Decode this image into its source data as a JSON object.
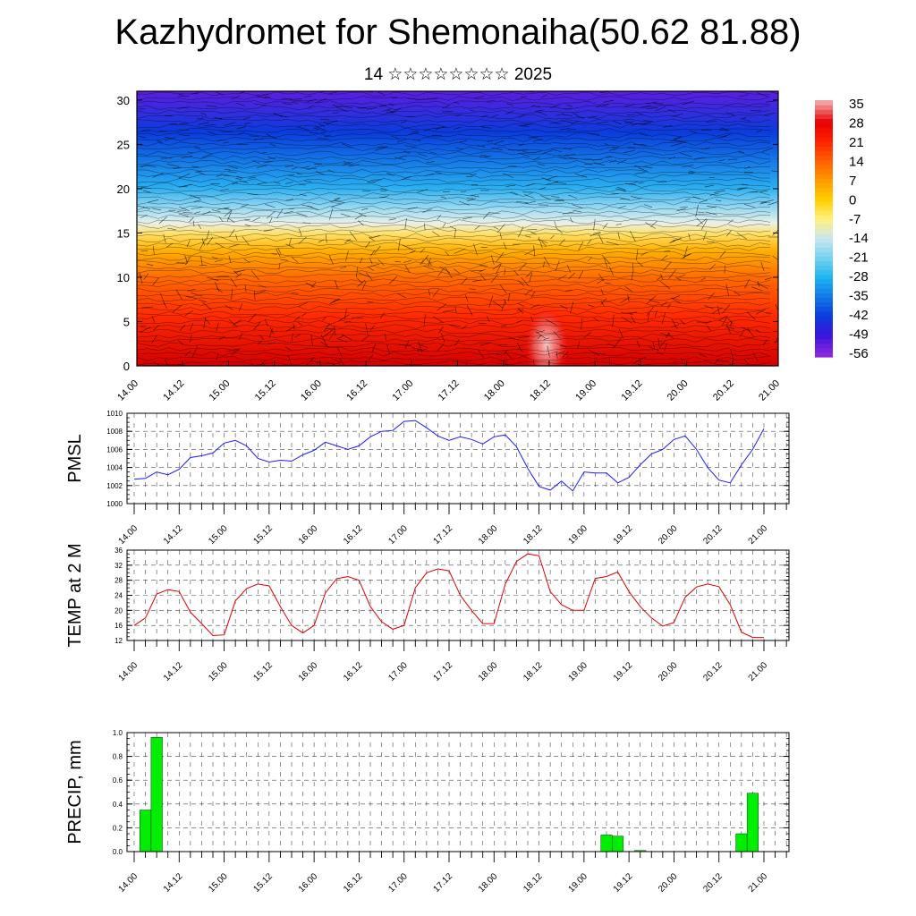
{
  "title": "Kazhydromet for Shemonaiha(50.62 81.88)",
  "subtitle": "14 ☆☆☆☆☆☆☆☆ 2025",
  "colorbar": {
    "labels": [
      "35",
      "28",
      "21",
      "14",
      "7",
      "0",
      "-7",
      "-14",
      "-21",
      "-28",
      "-35",
      "-42",
      "-49",
      "-56"
    ],
    "colors": [
      "#f0a0a0",
      "#e60000",
      "#ff2200",
      "#ff6000",
      "#ff9a00",
      "#ffd000",
      "#fff080",
      "#c8e6f0",
      "#78d2f0",
      "#1eb4f0",
      "#1478e6",
      "#0a3cdc",
      "#3c14dc",
      "#8c28dc"
    ]
  },
  "chart_data": [
    {
      "type": "heatmap",
      "title": "",
      "xlabel": "",
      "ylabel": "",
      "x_ticks": [
        "14.00",
        "14.12",
        "15.00",
        "15.12",
        "16.00",
        "16.12",
        "17.00",
        "17.12",
        "18.00",
        "18.12",
        "19.00",
        "19.12",
        "20.00",
        "20.12",
        "21.00"
      ],
      "y_ticks": [
        "0",
        "5",
        "10",
        "15",
        "20",
        "25",
        "30"
      ],
      "ylim": [
        0,
        31
      ],
      "value_range": [
        -56,
        35
      ]
    },
    {
      "type": "line",
      "ylabel": "PMSL",
      "y_ticks": [
        "1000",
        "1002",
        "1004",
        "1006",
        "1008",
        "1010"
      ],
      "ylim": [
        1000,
        1010
      ],
      "x_ticks": [
        "14.00",
        "14.12",
        "15.00",
        "15.12",
        "16.00",
        "16.12",
        "17.00",
        "17.12",
        "18.00",
        "18.12",
        "19.00",
        "19.12",
        "20.00",
        "20.12",
        "21.00"
      ],
      "x_step_hours": 3,
      "color": "#1a1aff",
      "values": [
        1002.7,
        1002.8,
        1003.5,
        1003.2,
        1003.8,
        1005.1,
        1005.3,
        1005.6,
        1006.7,
        1007.0,
        1006.4,
        1005.0,
        1004.6,
        1004.8,
        1004.7,
        1005.4,
        1005.9,
        1006.8,
        1006.4,
        1006.0,
        1006.4,
        1007.4,
        1008.0,
        1008.1,
        1009.1,
        1009.2,
        1008.4,
        1007.5,
        1007.0,
        1007.4,
        1007.1,
        1006.6,
        1007.4,
        1007.6,
        1006.3,
        1003.9,
        1001.9,
        1001.5,
        1002.5,
        1001.4,
        1003.5,
        1003.4,
        1003.4,
        1002.3,
        1002.9,
        1004.3,
        1005.5,
        1006.0,
        1007.1,
        1007.5,
        1006.0,
        1004.0,
        1002.6,
        1002.3,
        1004.3,
        1006.0,
        1008.3
      ]
    },
    {
      "type": "line",
      "ylabel": "TEMP at 2 M",
      "y_ticks": [
        "12",
        "16",
        "20",
        "24",
        "28",
        "32",
        "36"
      ],
      "ylim": [
        12,
        36
      ],
      "x_ticks": [
        "14.00",
        "14.12",
        "15.00",
        "15.12",
        "16.00",
        "16.12",
        "17.00",
        "17.12",
        "18.00",
        "18.12",
        "19.00",
        "19.12",
        "20.00",
        "20.12",
        "21.00"
      ],
      "x_step_hours": 3,
      "color": "#e00000",
      "values": [
        16,
        18,
        24.3,
        25.5,
        25,
        19.5,
        16.5,
        13.3,
        13.5,
        22.5,
        25.8,
        27,
        26.5,
        21,
        16,
        14,
        16,
        24.6,
        28.4,
        29,
        28,
        21,
        17,
        15,
        16,
        26,
        30,
        31,
        30.5,
        24,
        20,
        16.5,
        16.5,
        27,
        33,
        35,
        34.5,
        25,
        21.5,
        20,
        20,
        28.5,
        29,
        30.2,
        25,
        21,
        18,
        15.8,
        16.8,
        23.5,
        26.2,
        27,
        26.3,
        21.5,
        14.2,
        12.8,
        12.8
      ]
    },
    {
      "type": "bar",
      "ylabel": "PRECIP, mm",
      "y_ticks": [
        "0.0",
        "0.2",
        "0.4",
        "0.6",
        "0.8",
        "1.0"
      ],
      "ylim": [
        0,
        1.0
      ],
      "x_ticks": [
        "14.00",
        "14.12",
        "15.00",
        "15.12",
        "16.00",
        "16.12",
        "17.00",
        "17.12",
        "18.00",
        "18.12",
        "19.00",
        "19.12",
        "20.00",
        "20.12",
        "21.00"
      ],
      "x_step_hours": 3,
      "color": "#00ee00",
      "values": [
        0,
        0.35,
        0.96,
        0,
        0,
        0,
        0,
        0,
        0,
        0,
        0,
        0,
        0,
        0,
        0,
        0,
        0,
        0,
        0,
        0,
        0,
        0,
        0,
        0,
        0,
        0,
        0,
        0,
        0,
        0,
        0,
        0,
        0,
        0,
        0,
        0,
        0,
        0,
        0,
        0,
        0,
        0,
        0.14,
        0.13,
        0,
        0.01,
        0,
        0,
        0,
        0,
        0,
        0,
        0,
        0,
        0.15,
        0.49,
        0
      ]
    }
  ]
}
